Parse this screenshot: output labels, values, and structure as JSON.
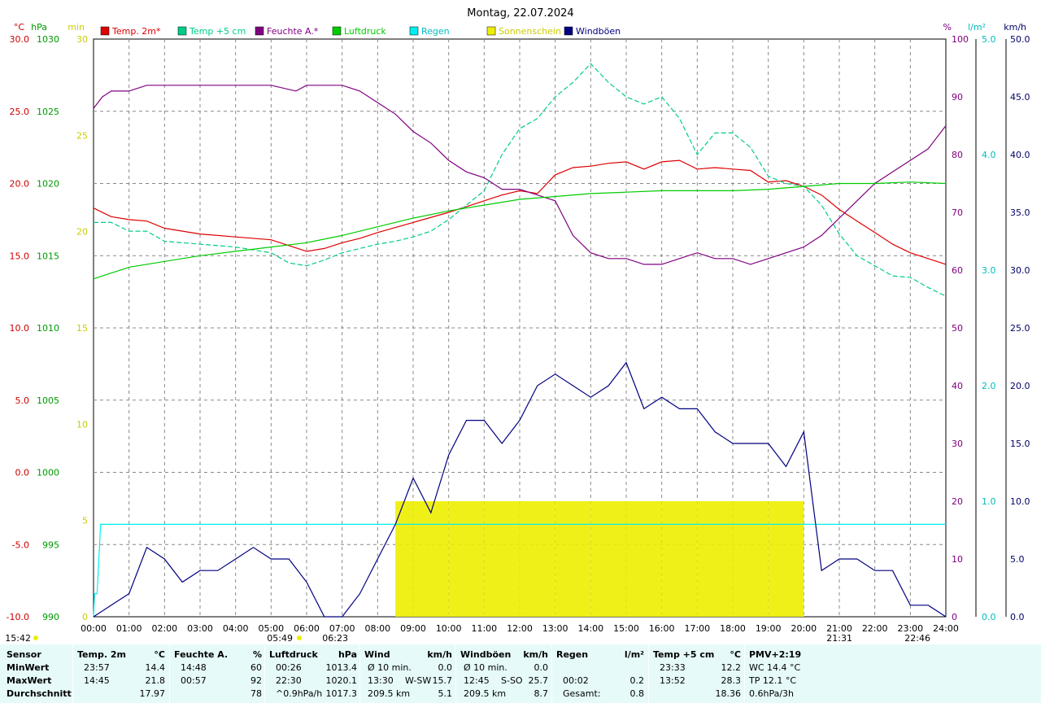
{
  "chart_data": {
    "type": "line",
    "title": "Montag, 22.07.2024",
    "axes": {
      "left_temp": {
        "unit": "°C",
        "min": -10,
        "max": 30,
        "ticks": [
          "30.0",
          "25.0",
          "20.0",
          "15.0",
          "10.0",
          "5.0",
          "0.0",
          "-5.0",
          "-10.0"
        ],
        "color": "#cc0000"
      },
      "left_pressure": {
        "unit": "hPa",
        "min": 990,
        "max": 1030,
        "ticks": [
          "1030",
          "1025",
          "1020",
          "1015",
          "1010",
          "1005",
          "1000",
          "995",
          "990"
        ],
        "color": "#009900"
      },
      "left_sun": {
        "unit": "min",
        "min": 0,
        "max": 30,
        "ticks": [
          "30",
          "25",
          "20",
          "15",
          "10",
          "5",
          "0"
        ],
        "color": "#e6e600"
      },
      "right_humidity": {
        "unit": "%",
        "min": 0,
        "max": 100,
        "ticks": [
          "100",
          "90",
          "80",
          "70",
          "60",
          "50",
          "40",
          "30",
          "20",
          "10",
          "0"
        ],
        "color": "#800080"
      },
      "right_rain": {
        "unit": "l/m²",
        "min": 0,
        "max": 5,
        "ticks": [
          "5.0",
          "4.0",
          "3.0",
          "2.0",
          "1.0",
          "0.0"
        ],
        "color": "#00cccc"
      },
      "right_wind": {
        "unit": "km/h",
        "min": 0,
        "max": 50,
        "ticks": [
          "50.0",
          "45.0",
          "40.0",
          "35.0",
          "30.0",
          "25.0",
          "20.0",
          "15.0",
          "10.0",
          "5.0",
          "0.0"
        ],
        "color": "#000066"
      }
    },
    "x_ticks": [
      "00:00",
      "01:00",
      "02:00",
      "03:00",
      "04:00",
      "05:00",
      "06:00",
      "07:00",
      "08:00",
      "09:00",
      "10:00",
      "11:00",
      "12:00",
      "13:00",
      "14:00",
      "15:00",
      "16:00",
      "17:00",
      "18:00",
      "19:00",
      "20:00",
      "21:00",
      "22:00",
      "23:00",
      "24:00"
    ],
    "x_range_hours": [
      0,
      24
    ],
    "grid": true,
    "legend": [
      {
        "name": "Temp. 2m*",
        "color": "#dd0000"
      },
      {
        "name": "Temp +5 cm",
        "color": "#00cc88"
      },
      {
        "name": "Feuchte A.*",
        "color": "#800080"
      },
      {
        "name": "Luftdruck",
        "color": "#00cc00"
      },
      {
        "name": "Regen",
        "color": "#00eeee"
      },
      {
        "name": "Sonnenschein",
        "color": "#eeee00"
      },
      {
        "name": "Windböen",
        "color": "#000080"
      }
    ],
    "markers": {
      "sunrise": "05:49",
      "sunrise2": "06:23",
      "start": "15:42",
      "sunset": "21:31",
      "sunset2": "22:46"
    },
    "series": [
      {
        "name": "Temp. 2m*",
        "axis": "left_temp",
        "color": "#dd0000",
        "x": [
          0,
          0.5,
          1,
          1.5,
          2,
          3,
          4,
          5,
          5.5,
          6,
          6.5,
          7,
          7.5,
          8,
          9,
          10,
          10.5,
          11,
          11.5,
          12,
          12.5,
          13,
          13.5,
          14,
          14.5,
          15,
          15.5,
          16,
          16.5,
          17,
          17.5,
          18,
          18.5,
          19,
          19.5,
          20,
          20.5,
          21,
          21.5,
          22,
          22.5,
          23,
          23.5,
          24
        ],
        "values": [
          18.3,
          17.7,
          17.5,
          17.4,
          16.9,
          16.5,
          16.3,
          16.1,
          15.7,
          15.3,
          15.5,
          15.9,
          16.2,
          16.6,
          17.3,
          18.0,
          18.4,
          18.8,
          19.2,
          19.5,
          19.3,
          20.6,
          21.1,
          21.2,
          21.4,
          21.5,
          21.0,
          21.5,
          21.6,
          21.0,
          21.1,
          21.0,
          20.9,
          20.1,
          20.2,
          19.8,
          19.2,
          18.2,
          17.4,
          16.6,
          15.8,
          15.2,
          14.8,
          14.4
        ]
      },
      {
        "name": "Temp +5 cm",
        "axis": "left_temp",
        "color": "#00cc88",
        "x": [
          0,
          0.5,
          1,
          1.5,
          2,
          3,
          4,
          5,
          5.5,
          6,
          6.5,
          7,
          7.5,
          8,
          8.5,
          9,
          9.5,
          10,
          10.5,
          11,
          11.5,
          12,
          12.5,
          13,
          13.5,
          14,
          14.5,
          15,
          15.5,
          16,
          16.5,
          17,
          17.5,
          18,
          18.5,
          19,
          19.5,
          20,
          20.5,
          21,
          21.5,
          22,
          22.5,
          23,
          23.5,
          24
        ],
        "values": [
          17.3,
          17.3,
          16.7,
          16.7,
          16.0,
          15.8,
          15.6,
          15.2,
          14.5,
          14.3,
          14.7,
          15.2,
          15.5,
          15.8,
          16.0,
          16.3,
          16.7,
          17.5,
          18.5,
          19.5,
          22.0,
          23.8,
          24.5,
          26.0,
          27.0,
          28.3,
          27.0,
          26.0,
          25.5,
          26.0,
          24.5,
          22.0,
          23.5,
          23.5,
          22.5,
          20.5,
          20.0,
          19.8,
          18.5,
          16.5,
          15.0,
          14.3,
          13.6,
          13.5,
          12.8,
          12.2
        ]
      },
      {
        "name": "Feuchte A.*",
        "axis": "right_humidity",
        "color": "#800080",
        "x": [
          0,
          0.25,
          0.5,
          1,
          1.5,
          2,
          3,
          4,
          5,
          5.7,
          6,
          7,
          7.5,
          8,
          8.5,
          9,
          9.5,
          10,
          10.5,
          11,
          11.5,
          12,
          12.5,
          13,
          13.5,
          14,
          14.5,
          15,
          15.5,
          16,
          16.5,
          17,
          17.5,
          18,
          18.5,
          19,
          19.5,
          20,
          20.5,
          21,
          21.5,
          22,
          22.5,
          23,
          23.5,
          24
        ],
        "values": [
          88,
          90,
          91,
          91,
          92,
          92,
          92,
          92,
          92,
          91,
          92,
          92,
          91,
          89,
          87,
          84,
          82,
          79,
          77,
          76,
          74,
          74,
          73,
          72,
          66,
          63,
          62,
          62,
          61,
          61,
          62,
          63,
          62,
          62,
          61,
          62,
          63,
          64,
          66,
          69,
          72,
          75,
          77,
          79,
          81,
          85
        ]
      },
      {
        "name": "Luftdruck",
        "axis": "left_pressure",
        "color": "#00cc00",
        "x": [
          0,
          1,
          2,
          3,
          4,
          5,
          6,
          7,
          8,
          9,
          10,
          11,
          12,
          13,
          14,
          15,
          16,
          17,
          18,
          19,
          20,
          21,
          22,
          23,
          24
        ],
        "values": [
          1013.4,
          1014.2,
          1014.6,
          1015.0,
          1015.3,
          1015.6,
          1015.9,
          1016.4,
          1017.0,
          1017.6,
          1018.1,
          1018.5,
          1018.9,
          1019.1,
          1019.3,
          1019.4,
          1019.5,
          1019.5,
          1019.5,
          1019.6,
          1019.8,
          1020.0,
          1020.0,
          1020.1,
          1020.0
        ]
      },
      {
        "name": "Regen",
        "axis": "right_rain",
        "color": "#00eeee",
        "x": [
          0,
          0.03,
          0.1,
          0.2,
          24
        ],
        "values": [
          0.0,
          0.2,
          0.2,
          0.8,
          0.8
        ]
      },
      {
        "name": "Windböen",
        "axis": "right_wind",
        "color": "#000080",
        "x": [
          0,
          0.5,
          1,
          1.5,
          2,
          2.5,
          3,
          3.5,
          4,
          4.5,
          5,
          5.5,
          6,
          6.5,
          7,
          7.5,
          8,
          8.5,
          9,
          9.5,
          10,
          10.5,
          11,
          11.5,
          12,
          12.5,
          13,
          13.5,
          14,
          14.5,
          15,
          15.5,
          16,
          16.5,
          17,
          17.5,
          18,
          18.5,
          19,
          19.5,
          20,
          20.5,
          21,
          21.5,
          22,
          22.5,
          23,
          23.5,
          24
        ],
        "values": [
          0,
          1,
          2,
          6,
          5,
          3,
          4,
          4,
          5,
          6,
          5,
          5,
          3,
          0,
          0,
          2,
          5,
          8,
          12,
          9,
          14,
          17,
          17,
          15,
          17,
          20,
          21,
          20,
          19,
          20,
          22,
          18,
          19,
          18,
          18,
          16,
          15,
          15,
          15,
          13,
          16,
          4,
          5,
          5,
          4,
          4,
          1,
          1,
          0
        ]
      },
      {
        "name": "Sonnenschein",
        "axis": "left_sun",
        "color": "#eeee00",
        "x": [
          8.5,
          9,
          10,
          11,
          12,
          13,
          14,
          15,
          16,
          17,
          18,
          19,
          20
        ],
        "values": [
          6,
          6,
          6,
          6,
          6,
          6,
          6,
          6,
          6,
          6,
          6,
          6,
          6
        ]
      }
    ]
  },
  "footer": {
    "cols": [
      {
        "head": "Sensor",
        "rows": [
          "MinWert",
          "MaxWert",
          "Durchschnitt"
        ]
      },
      {
        "head": "Temp. 2m",
        "unit": "°C",
        "rows": [
          [
            "23:57",
            "14.4"
          ],
          [
            "14:45",
            "21.8"
          ],
          [
            "",
            "17.97"
          ]
        ]
      },
      {
        "head": "Feuchte A.",
        "unit": "%",
        "rows": [
          [
            "14:48",
            "60"
          ],
          [
            "00:57",
            "92"
          ],
          [
            "",
            "78"
          ]
        ]
      },
      {
        "head": "Luftdruck",
        "unit": "hPa",
        "rows": [
          [
            "00:26",
            "1013.4"
          ],
          [
            "22:30",
            "1020.1"
          ],
          [
            "^0.9hPa/h",
            "1017.3"
          ]
        ]
      },
      {
        "head": "Wind",
        "unit": "km/h",
        "rows": [
          [
            "Ø 10 min.",
            "",
            "0.0"
          ],
          [
            "13:30",
            "W-SW",
            "15.7"
          ],
          [
            "209.5 km",
            "",
            "5.1"
          ]
        ]
      },
      {
        "head": "Windböen",
        "unit": "km/h",
        "rows": [
          [
            "Ø 10 min.",
            "",
            "0.0"
          ],
          [
            "12:45",
            "S-SO",
            "25.7"
          ],
          [
            "209.5 km",
            "",
            "8.7"
          ]
        ]
      },
      {
        "head": "Regen",
        "unit": "l/m²",
        "rows": [
          [
            "",
            ""
          ],
          [
            "00:02",
            "0.2"
          ],
          [
            "Gesamt:",
            "0.8"
          ]
        ]
      },
      {
        "head": "Temp +5 cm",
        "unit": "°C",
        "rows": [
          [
            "23:33",
            "12.2"
          ],
          [
            "13:52",
            "28.3"
          ],
          [
            "",
            "18.36"
          ]
        ]
      },
      {
        "head": "PMV+2:19",
        "rows": [
          "WC 14.4 °C",
          "TP 12.1 °C",
          "0.6hPa/3h"
        ]
      }
    ]
  }
}
